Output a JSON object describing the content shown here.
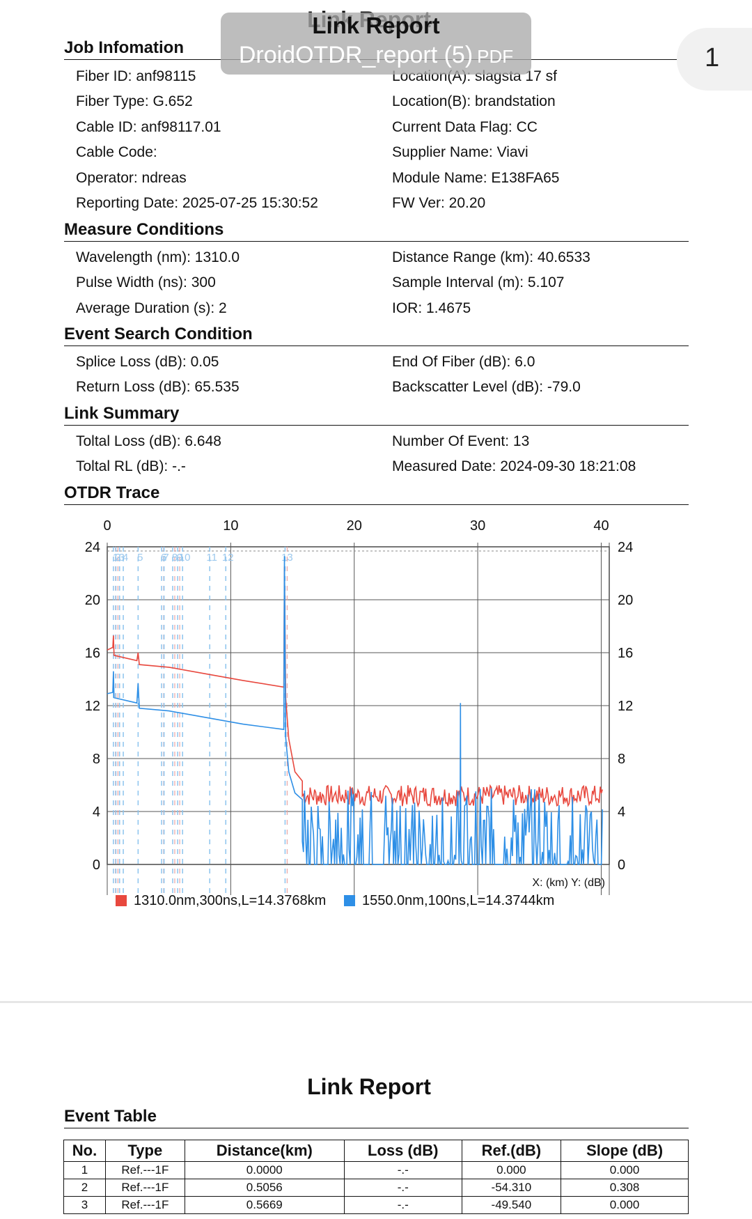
{
  "header": {
    "report_title": "Link Report",
    "file_name": "DroidOTDR_report (5)",
    "file_type": "PDF",
    "page_number": "1"
  },
  "job": {
    "heading": "Job Infomation",
    "left": [
      "Fiber ID: anf98115",
      "Fiber Type: G.652",
      "Cable ID: anf98117.01",
      "Cable Code:",
      "Operator: ndreas",
      "Reporting Date: 2025-07-25 15:30:52"
    ],
    "right": [
      "Location(A): slagsta 17 sf",
      "Location(B): brandstation",
      "Current Data Flag: CC",
      "Supplier Name: Viavi",
      "Module Name: E138FA65",
      "FW Ver: 20.20"
    ]
  },
  "measure": {
    "heading": "Measure Conditions",
    "left": [
      "Wavelength (nm): 1310.0",
      "Pulse Width (ns): 300",
      "Average Duration (s): 2"
    ],
    "right": [
      "Distance Range (km): 40.6533",
      "Sample Interval (m): 5.107",
      "IOR: 1.4675"
    ]
  },
  "event_search": {
    "heading": "Event Search Condition",
    "left": [
      "Splice Loss (dB): 0.05",
      "Return Loss (dB): 65.535"
    ],
    "right": [
      "End Of Fiber (dB): 6.0",
      "Backscatter Level (dB): -79.0"
    ]
  },
  "summary": {
    "heading": "Link Summary",
    "left": [
      "Toltal Loss (dB): 6.648",
      "Toltal RL (dB): -.-"
    ],
    "right": [
      "Number Of Event: 13",
      "Measured Date: 2024-09-30 18:21:08"
    ]
  },
  "trace": {
    "heading": "OTDR Trace"
  },
  "chart_data": {
    "type": "line",
    "xlim": [
      0,
      40.65
    ],
    "ylim": [
      0,
      24
    ],
    "x_ticks": [
      0,
      10,
      20,
      30,
      40
    ],
    "y_ticks": [
      0,
      4,
      8,
      12,
      16,
      20,
      24
    ],
    "axis_note": "X: (km)   Y: (dB)",
    "grid": true,
    "legend_position": "bottom",
    "event_markers": [
      {
        "label": "1",
        "x": 0.5,
        "kind": "both"
      },
      {
        "label": "2",
        "x": 0.7,
        "kind": "both"
      },
      {
        "label": "3",
        "x": 1.0,
        "kind": "blue"
      },
      {
        "label": "4",
        "x": 1.3,
        "kind": "blue"
      },
      {
        "label": "5",
        "x": 2.5,
        "kind": "blue"
      },
      {
        "label": "6",
        "x": 4.4,
        "kind": "both"
      },
      {
        "label": "7",
        "x": 4.6,
        "kind": "blue"
      },
      {
        "label": "8",
        "x": 5.3,
        "kind": "both"
      },
      {
        "label": "9",
        "x": 5.7,
        "kind": "both"
      },
      {
        "label": "10",
        "x": 6.1,
        "kind": "blue"
      },
      {
        "label": "11",
        "x": 8.3,
        "kind": "blue"
      },
      {
        "label": "12",
        "x": 9.6,
        "kind": "blue"
      },
      {
        "label": "13",
        "x": 14.4,
        "kind": "both"
      }
    ],
    "series": [
      {
        "name": "1310.0nm,300ns,L=14.3768km",
        "color": "#e8483e",
        "points": [
          [
            0,
            16.2
          ],
          [
            0.45,
            16.4
          ],
          [
            0.5,
            17.3
          ],
          [
            0.55,
            15.8
          ],
          [
            2.4,
            15.4
          ],
          [
            2.5,
            16.0
          ],
          [
            2.6,
            15.1
          ],
          [
            5.0,
            14.9
          ],
          [
            8.0,
            14.4
          ],
          [
            11.0,
            13.9
          ],
          [
            14.3,
            13.4
          ],
          [
            14.35,
            22.5
          ],
          [
            14.45,
            12.6
          ],
          [
            14.7,
            9.5
          ],
          [
            15.2,
            7.0
          ],
          [
            15.8,
            6.3
          ]
        ],
        "noise_from": 15.8,
        "noise_mid": 5.2,
        "noise_amp": 0.8
      },
      {
        "name": "1550.0nm,100ns,L=14.3744km",
        "color": "#2e8fe6",
        "points": [
          [
            0,
            12.9
          ],
          [
            0.45,
            13.0
          ],
          [
            0.5,
            14.6
          ],
          [
            0.55,
            12.6
          ],
          [
            2.4,
            12.2
          ],
          [
            2.5,
            13.7
          ],
          [
            2.6,
            11.8
          ],
          [
            5.0,
            11.6
          ],
          [
            8.0,
            11.1
          ],
          [
            11.0,
            10.6
          ],
          [
            14.3,
            10.2
          ],
          [
            14.35,
            23.3
          ],
          [
            14.45,
            9.6
          ],
          [
            14.7,
            7.0
          ],
          [
            15.2,
            5.4
          ],
          [
            15.8,
            4.9
          ]
        ],
        "noise_from": 15.8,
        "noise_mid": 3.0,
        "noise_amp": 2.8,
        "spike": {
          "x": 28.6,
          "y": 12.2
        }
      }
    ]
  },
  "page2": {
    "report_title": "Link Report",
    "heading": "Event Table",
    "columns": [
      "No.",
      "Type",
      "Distance(km)",
      "Loss (dB)",
      "Ref.(dB)",
      "Slope (dB)"
    ],
    "rows": [
      [
        "1",
        "Ref.---1F",
        "0.0000",
        "-.-",
        "0.000",
        "0.000"
      ],
      [
        "2",
        "Ref.---1F",
        "0.5056",
        "-.-",
        "-54.310",
        "0.308"
      ],
      [
        "3",
        "Ref.---1F",
        "0.5669",
        "-.-",
        "-49.540",
        "0.000"
      ]
    ]
  }
}
